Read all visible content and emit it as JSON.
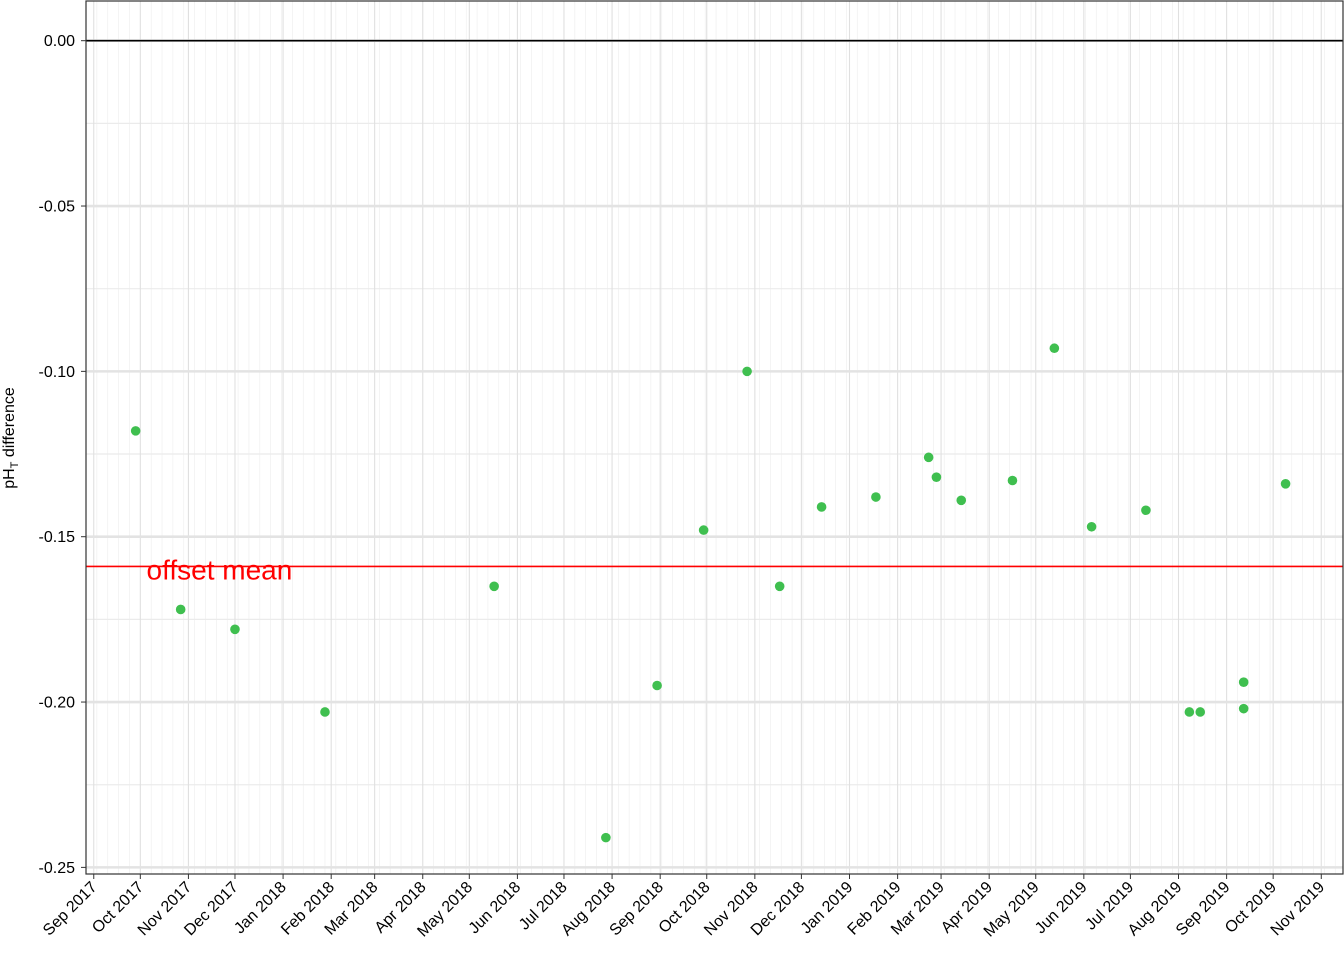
{
  "chart_data": {
    "type": "scatter",
    "title": "",
    "ylabel_main": "pH",
    "ylabel_sub": "T",
    "ylabel_rest": " difference",
    "xlabel": "",
    "ylim": [
      -0.252,
      0.012
    ],
    "yticks": [
      0.0,
      -0.05,
      -0.1,
      -0.15,
      -0.2,
      -0.25
    ],
    "ytick_labels": [
      "0.00",
      "-0.05",
      "-0.10",
      "-0.15",
      "-0.20",
      "-0.25"
    ],
    "xlim": [
      "2017-08-27",
      "2019-11-15"
    ],
    "xticks": [
      "2017-09-01",
      "2017-10-01",
      "2017-11-01",
      "2017-12-01",
      "2018-01-01",
      "2018-02-01",
      "2018-03-01",
      "2018-04-01",
      "2018-05-01",
      "2018-06-01",
      "2018-07-01",
      "2018-08-01",
      "2018-09-01",
      "2018-10-01",
      "2018-11-01",
      "2018-12-01",
      "2019-01-01",
      "2019-02-01",
      "2019-03-01",
      "2019-04-01",
      "2019-05-01",
      "2019-06-01",
      "2019-07-01",
      "2019-08-01",
      "2019-09-01",
      "2019-10-01",
      "2019-11-01"
    ],
    "xtick_labels": [
      "Sep 2017",
      "Oct 2017",
      "Nov 2017",
      "Dec 2017",
      "Jan 2018",
      "Feb 2018",
      "Mar 2018",
      "Apr 2018",
      "May 2018",
      "Jun 2018",
      "Jul 2018",
      "Aug 2018",
      "Sep 2018",
      "Oct 2018",
      "Nov 2018",
      "Dec 2018",
      "Jan 2019",
      "Feb 2019",
      "Mar 2019",
      "Apr 2019",
      "May 2019",
      "Jun 2019",
      "Jul 2019",
      "Aug 2019",
      "Sep 2019",
      "Oct 2019",
      "Nov 2019"
    ],
    "grid": true,
    "points": [
      {
        "x": "2017-09-28",
        "y": -0.118
      },
      {
        "x": "2017-10-27",
        "y": -0.172
      },
      {
        "x": "2017-12-01",
        "y": -0.178
      },
      {
        "x": "2018-01-28",
        "y": -0.203
      },
      {
        "x": "2018-05-17",
        "y": -0.165
      },
      {
        "x": "2018-07-28",
        "y": -0.241
      },
      {
        "x": "2018-08-30",
        "y": -0.195
      },
      {
        "x": "2018-09-29",
        "y": -0.148
      },
      {
        "x": "2018-10-27",
        "y": -0.1
      },
      {
        "x": "2018-11-17",
        "y": -0.165
      },
      {
        "x": "2018-12-14",
        "y": -0.141
      },
      {
        "x": "2019-01-18",
        "y": -0.138
      },
      {
        "x": "2019-02-21",
        "y": -0.126
      },
      {
        "x": "2019-02-26",
        "y": -0.132
      },
      {
        "x": "2019-03-14",
        "y": -0.139
      },
      {
        "x": "2019-04-16",
        "y": -0.133
      },
      {
        "x": "2019-05-13",
        "y": -0.093
      },
      {
        "x": "2019-06-06",
        "y": -0.147
      },
      {
        "x": "2019-07-11",
        "y": -0.142
      },
      {
        "x": "2019-08-08",
        "y": -0.203
      },
      {
        "x": "2019-08-15",
        "y": -0.203
      },
      {
        "x": "2019-09-12",
        "y": -0.194
      },
      {
        "x": "2019-09-12",
        "y": -0.202
      },
      {
        "x": "2019-10-09",
        "y": -0.134
      }
    ],
    "hlines": [
      {
        "y": 0.0,
        "color": "#000000"
      },
      {
        "y": -0.159,
        "color": "#ff0000"
      }
    ],
    "annotation": {
      "text": "offset mean",
      "x": "2017-10-05",
      "y": -0.159,
      "color": "#ff0000"
    },
    "point_color": "#3fbf4f"
  }
}
